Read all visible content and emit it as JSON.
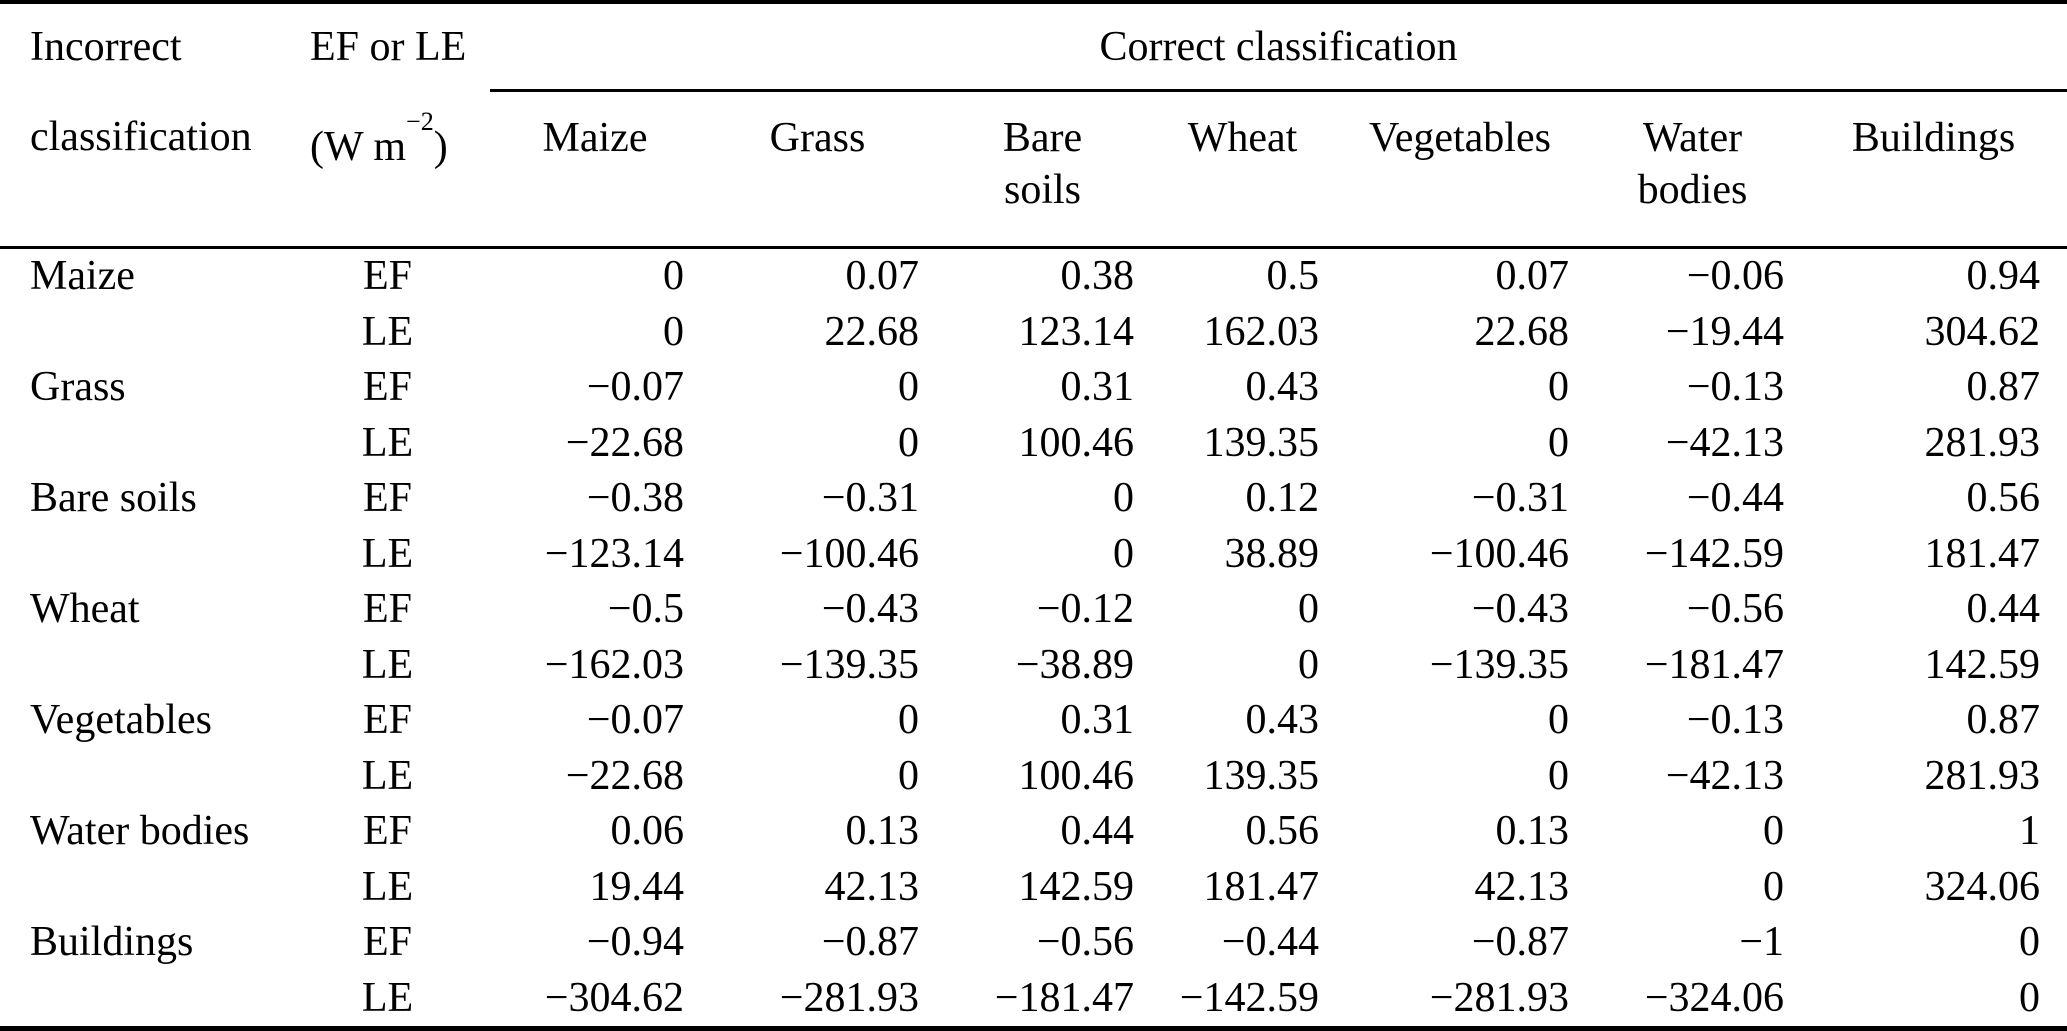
{
  "table": {
    "header": {
      "incorrect_line1": "Incorrect",
      "incorrect_line2": "classification",
      "ef_le_line1": "EF or LE",
      "unit_prefix": "(W m",
      "unit_sup": "−2",
      "unit_suffix": ")",
      "correct_label": "Correct classification",
      "columns": [
        "Maize",
        "Grass",
        "Bare\nsoils",
        "Wheat",
        "Vegetables",
        "Water\nbodies",
        "Buildings"
      ]
    },
    "metrics": [
      "EF",
      "LE"
    ],
    "rows": [
      {
        "label": "Maize",
        "ef": [
          "0",
          "0.07",
          "0.38",
          "0.5",
          "0.07",
          "−0.06",
          "0.94"
        ],
        "le": [
          "0",
          "22.68",
          "123.14",
          "162.03",
          "22.68",
          "−19.44",
          "304.62"
        ]
      },
      {
        "label": "Grass",
        "ef": [
          "−0.07",
          "0",
          "0.31",
          "0.43",
          "0",
          "−0.13",
          "0.87"
        ],
        "le": [
          "−22.68",
          "0",
          "100.46",
          "139.35",
          "0",
          "−42.13",
          "281.93"
        ]
      },
      {
        "label": "Bare soils",
        "ef": [
          "−0.38",
          "−0.31",
          "0",
          "0.12",
          "−0.31",
          "−0.44",
          "0.56"
        ],
        "le": [
          "−123.14",
          "−100.46",
          "0",
          "38.89",
          "−100.46",
          "−142.59",
          "181.47"
        ]
      },
      {
        "label": "Wheat",
        "ef": [
          "−0.5",
          "−0.43",
          "−0.12",
          "0",
          "−0.43",
          "−0.56",
          "0.44"
        ],
        "le": [
          "−162.03",
          "−139.35",
          "−38.89",
          "0",
          "−139.35",
          "−181.47",
          "142.59"
        ]
      },
      {
        "label": "Vegetables",
        "ef": [
          "−0.07",
          "0",
          "0.31",
          "0.43",
          "0",
          "−0.13",
          "0.87"
        ],
        "le": [
          "−22.68",
          "0",
          "100.46",
          "139.35",
          "0",
          "−42.13",
          "281.93"
        ]
      },
      {
        "label": "Water bodies",
        "ef": [
          "0.06",
          "0.13",
          "0.44",
          "0.56",
          "0.13",
          "0",
          "1"
        ],
        "le": [
          "19.44",
          "42.13",
          "142.59",
          "181.47",
          "42.13",
          "0",
          "324.06"
        ]
      },
      {
        "label": "Buildings",
        "ef": [
          "−0.94",
          "−0.87",
          "−0.56",
          "−0.44",
          "−0.87",
          "−1",
          "0"
        ],
        "le": [
          "−304.62",
          "−281.93",
          "−181.47",
          "−142.59",
          "−281.93",
          "−324.06",
          "0"
        ]
      }
    ]
  }
}
